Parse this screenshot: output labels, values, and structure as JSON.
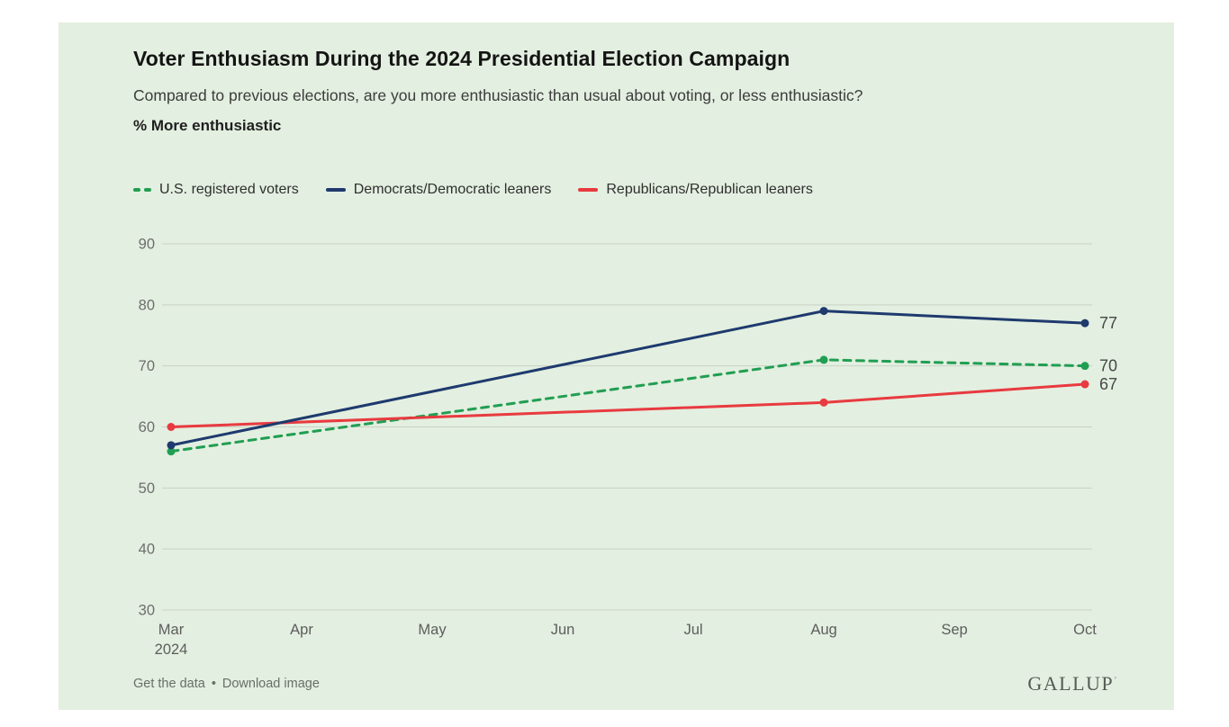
{
  "page": {
    "background": "#ffffff",
    "card_background": "#e3efe0"
  },
  "header": {
    "title": "Voter Enthusiasm During the 2024 Presidential Election Campaign",
    "subtitle": "Compared to previous elections, are you more enthusiastic than usual about voting, or less enthusiastic?",
    "measure_label": "% More enthusiastic"
  },
  "legend": {
    "items": [
      {
        "label": "U.S. registered voters",
        "color": "#219e52",
        "style": "dashed"
      },
      {
        "label": "Democrats/Democratic leaners",
        "color": "#1e3a6e",
        "style": "solid"
      },
      {
        "label": "Republicans/Republican leaners",
        "color": "#e83a40",
        "style": "solid"
      }
    ]
  },
  "chart_data": {
    "type": "line",
    "title": "Voter Enthusiasm During the 2024 Presidential Election Campaign",
    "subtitle": "Compared to previous elections, are you more enthusiastic than usual about voting, or less enthusiastic?",
    "ylabel": "% More enthusiastic",
    "x_categories": [
      "Mar",
      "Apr",
      "May",
      "Jun",
      "Jul",
      "Aug",
      "Sep",
      "Oct"
    ],
    "x_first_label_sub": "2024",
    "ylim": [
      30,
      90
    ],
    "yticks": [
      30,
      40,
      50,
      60,
      70,
      80,
      90
    ],
    "grid": "horizontal",
    "legend_position": "top",
    "colors": {
      "gridline": "#c8d2c6",
      "y_tick_label": "#6e6e6e",
      "x_tick_label": "#5d5d5d",
      "end_value_label": "#474747"
    },
    "series": [
      {
        "name": "U.S. registered voters",
        "color": "#219e52",
        "line_style": "dashed",
        "points": [
          {
            "x": "Mar",
            "y": 56
          },
          {
            "x": "Aug",
            "y": 71
          },
          {
            "x": "Oct",
            "y": 70
          }
        ],
        "end_label": "70"
      },
      {
        "name": "Democrats/Democratic leaners",
        "color": "#1e3a6e",
        "line_style": "solid",
        "points": [
          {
            "x": "Mar",
            "y": 57
          },
          {
            "x": "Aug",
            "y": 79
          },
          {
            "x": "Oct",
            "y": 77
          }
        ],
        "end_label": "77"
      },
      {
        "name": "Republicans/Republican leaners",
        "color": "#e83a40",
        "line_style": "solid",
        "points": [
          {
            "x": "Mar",
            "y": 60
          },
          {
            "x": "Aug",
            "y": 64
          },
          {
            "x": "Oct",
            "y": 67
          }
        ],
        "end_label": "67"
      }
    ]
  },
  "footer": {
    "links": [
      {
        "label": "Get the data"
      },
      {
        "label": "Download image"
      }
    ],
    "separator": "•",
    "brand": "GALLUP",
    "brand_mark": "’"
  }
}
